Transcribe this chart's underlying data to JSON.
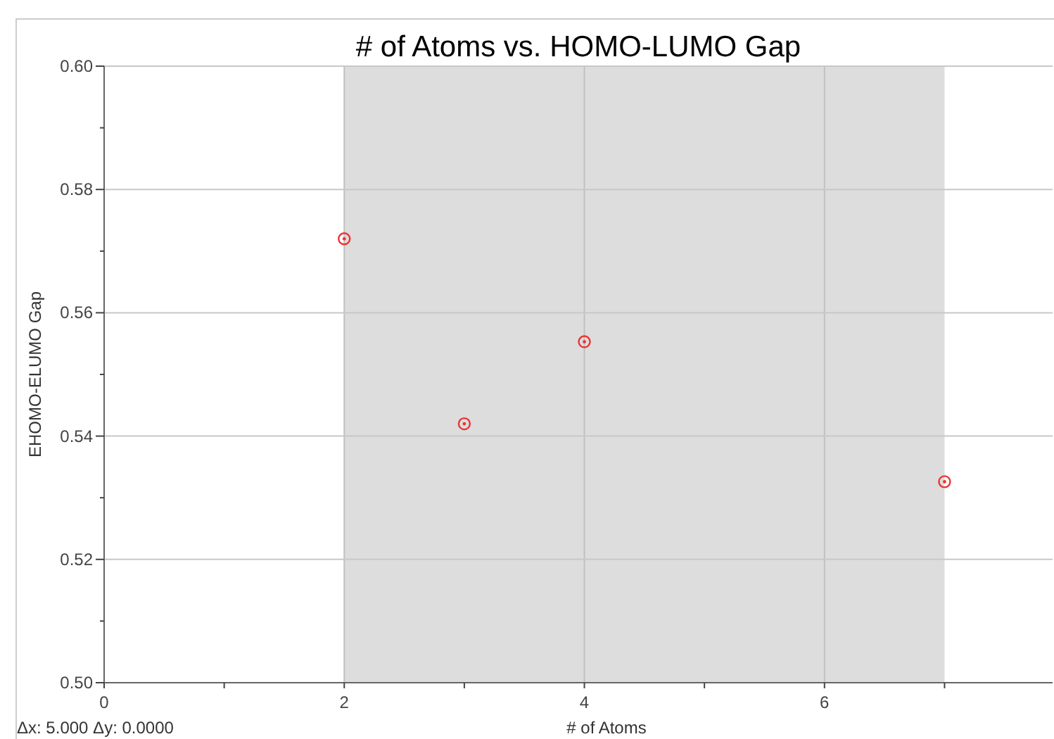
{
  "chart_data": {
    "type": "scatter",
    "title": "# of Atoms vs. HOMO-LUMO Gap",
    "xlabel": "# of Atoms",
    "ylabel": "EHOMO-ELUMO Gap",
    "x": [
      2,
      3,
      4,
      7
    ],
    "series": [
      {
        "color": "#ee3333",
        "values": [
          0.572,
          0.542,
          0.5553,
          0.5326
        ]
      }
    ],
    "xlim": [
      0,
      7.9
    ],
    "xticks": [
      0,
      {
        "value": 1,
        "label": null
      },
      2,
      {
        "value": 3,
        "label": null
      },
      4,
      {
        "value": 5,
        "label": null
      },
      6,
      {
        "value": 7,
        "label": null
      }
    ],
    "ylim": [
      0.5,
      0.6
    ],
    "yticks": [
      {
        "value": 0.5,
        "label": "0.50"
      },
      {
        "value": 0.51,
        "label": null
      },
      {
        "value": 0.52,
        "label": "0.52"
      },
      {
        "value": 0.53,
        "label": null
      },
      {
        "value": 0.54,
        "label": "0.54"
      },
      {
        "value": 0.55,
        "label": null
      },
      {
        "value": 0.56,
        "label": "0.56"
      },
      {
        "value": 0.57,
        "label": null
      },
      {
        "value": 0.58,
        "label": "0.58"
      },
      {
        "value": 0.59,
        "label": null
      },
      {
        "value": 0.6,
        "label": "0.60"
      }
    ],
    "bands": [
      {
        "axis": "x",
        "from": 2,
        "to": 7,
        "color": "#dddddd"
      }
    ],
    "annotations": [
      "Δx: 5.000 Δy: 0.0000"
    ],
    "grid": true,
    "marker": "circle"
  }
}
